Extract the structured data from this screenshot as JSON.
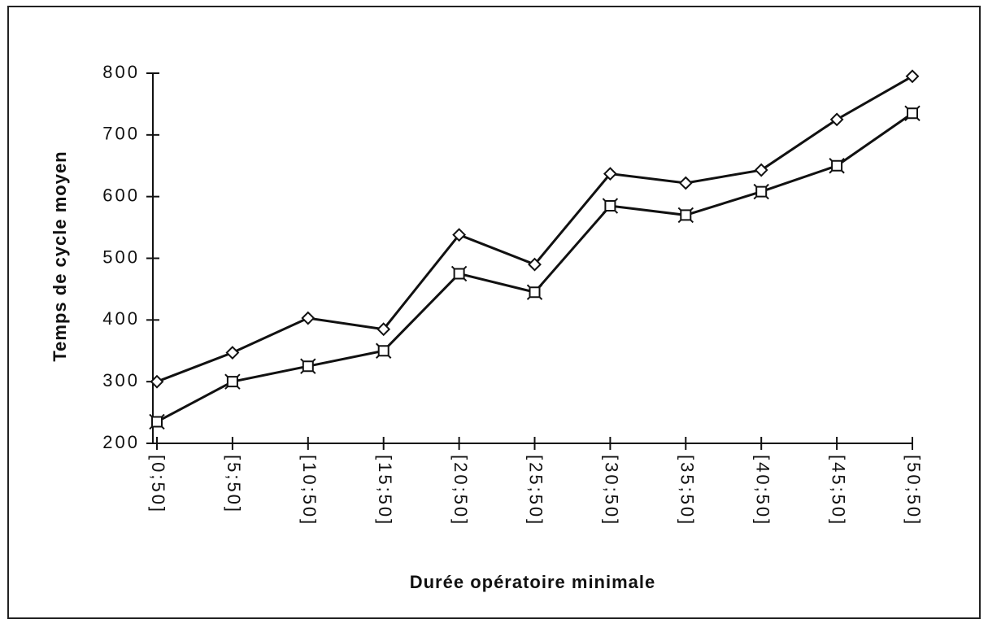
{
  "chart_data": {
    "type": "line",
    "xlabel": "Durée  opératoire  minimale",
    "ylabel": "Temps de cycle moyen",
    "categories": [
      "[0;50]",
      "[5;50]",
      "[10;50]",
      "[15;50]",
      "[20;50]",
      "[25;50]",
      "[30;50]",
      "[35;50]",
      "[40;50]",
      "[45;50]",
      "[50;50]"
    ],
    "series": [
      {
        "color": "#111111",
        "marker": "diamond",
        "values": [
          300,
          347,
          403,
          385,
          538,
          490,
          637,
          622,
          643,
          725,
          795
        ]
      },
      {
        "color": "#111111",
        "marker": "square",
        "values": [
          235,
          300,
          325,
          350,
          475,
          445,
          585,
          570,
          608,
          650,
          735
        ]
      }
    ],
    "ylim": [
      200,
      800
    ],
    "yticks": [
      200,
      300,
      400,
      500,
      600,
      700,
      800
    ]
  }
}
